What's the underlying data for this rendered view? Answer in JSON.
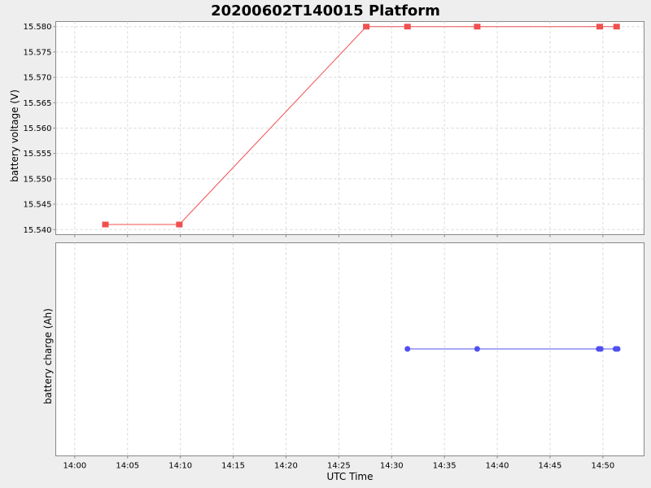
{
  "title": "20200602T140015 Platform",
  "colors": {
    "background": "#eeeeee",
    "plot_background": "#ffffff",
    "voltage_series": "#f05050",
    "charge_series": "#5050f0"
  },
  "chart_data": [
    {
      "type": "line",
      "title": "20200602T140015 Platform",
      "ylabel": "battery voltage (V)",
      "xlabel": "",
      "ylim": [
        15.539,
        15.581
      ],
      "yticks": [
        "15.540",
        "15.545",
        "15.550",
        "15.555",
        "15.560",
        "15.565",
        "15.570",
        "15.575",
        "15.580"
      ],
      "grid": true,
      "series": [
        {
          "marker": "square",
          "color": "#f05050",
          "x": [
            "14:02:54",
            "14:09:54",
            "14:27:36",
            "14:31:30",
            "14:38:06",
            "14:49:42",
            "14:51:18"
          ],
          "y": [
            15.541,
            15.541,
            15.58,
            15.58,
            15.58,
            15.58,
            15.58
          ]
        }
      ]
    },
    {
      "type": "line",
      "ylabel": "battery charge (Ah)",
      "xlabel": "UTC Time",
      "yticks": [],
      "grid": true,
      "series": [
        {
          "marker": "circle",
          "color": "#5050f0",
          "x": [
            "14:31:30",
            "14:38:06",
            "14:49:36",
            "14:49:48",
            "14:51:12",
            "14:51:24"
          ],
          "y": [
            0,
            0,
            0,
            0,
            0,
            0
          ]
        }
      ]
    }
  ],
  "x_axis": {
    "range": [
      "13:58:12",
      "14:53:54"
    ],
    "ticks": [
      "14:00",
      "14:05",
      "14:10",
      "14:15",
      "14:20",
      "14:25",
      "14:30",
      "14:35",
      "14:40",
      "14:45",
      "14:50"
    ]
  }
}
